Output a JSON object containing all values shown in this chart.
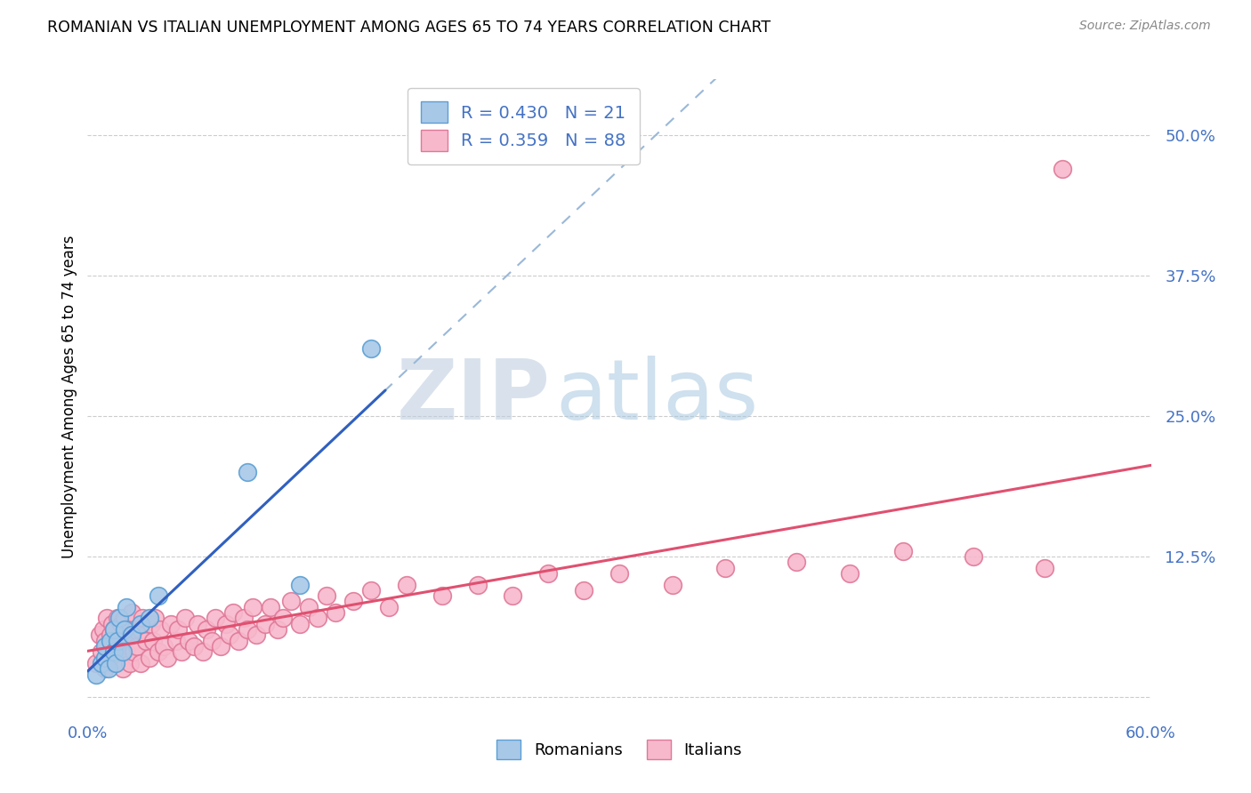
{
  "title": "ROMANIAN VS ITALIAN UNEMPLOYMENT AMONG AGES 65 TO 74 YEARS CORRELATION CHART",
  "source": "Source: ZipAtlas.com",
  "ylabel": "Unemployment Among Ages 65 to 74 years",
  "xlim": [
    0.0,
    0.6
  ],
  "ylim": [
    -0.015,
    0.55
  ],
  "yticks": [
    0.0,
    0.125,
    0.25,
    0.375,
    0.5
  ],
  "ytick_labels": [
    "",
    "12.5%",
    "25.0%",
    "37.5%",
    "50.0%"
  ],
  "xtick_labels": [
    "0.0%",
    "",
    "",
    "",
    "",
    "",
    "60.0%"
  ],
  "watermark_zip": "ZIP",
  "watermark_atlas": "atlas",
  "romanian_color": "#a8c8e8",
  "romanian_edge": "#5a9fd4",
  "italian_color": "#f7b8cc",
  "italian_edge": "#e07898",
  "trend_romanian_color": "#3060c0",
  "trend_italian_color": "#e05070",
  "trend_dashed_color": "#9ab8d8",
  "R_romanian": 0.43,
  "N_romanian": 21,
  "R_italian": 0.359,
  "N_italian": 88,
  "romanian_x": [
    0.005,
    0.008,
    0.01,
    0.01,
    0.012,
    0.013,
    0.015,
    0.015,
    0.016,
    0.017,
    0.018,
    0.02,
    0.021,
    0.022,
    0.025,
    0.03,
    0.035,
    0.04,
    0.09,
    0.12,
    0.16
  ],
  "romanian_y": [
    0.02,
    0.03,
    0.035,
    0.045,
    0.025,
    0.05,
    0.04,
    0.06,
    0.03,
    0.05,
    0.07,
    0.04,
    0.06,
    0.08,
    0.055,
    0.065,
    0.07,
    0.09,
    0.2,
    0.1,
    0.31
  ],
  "italian_x": [
    0.005,
    0.007,
    0.008,
    0.009,
    0.01,
    0.01,
    0.011,
    0.012,
    0.013,
    0.014,
    0.015,
    0.015,
    0.016,
    0.017,
    0.018,
    0.019,
    0.02,
    0.02,
    0.021,
    0.022,
    0.023,
    0.024,
    0.025,
    0.025,
    0.026,
    0.027,
    0.028,
    0.03,
    0.03,
    0.031,
    0.033,
    0.035,
    0.036,
    0.037,
    0.038,
    0.04,
    0.041,
    0.043,
    0.045,
    0.047,
    0.05,
    0.051,
    0.053,
    0.055,
    0.057,
    0.06,
    0.062,
    0.065,
    0.067,
    0.07,
    0.072,
    0.075,
    0.078,
    0.08,
    0.082,
    0.085,
    0.088,
    0.09,
    0.093,
    0.095,
    0.1,
    0.103,
    0.107,
    0.11,
    0.115,
    0.12,
    0.125,
    0.13,
    0.135,
    0.14,
    0.15,
    0.16,
    0.17,
    0.18,
    0.2,
    0.22,
    0.24,
    0.26,
    0.28,
    0.3,
    0.33,
    0.36,
    0.4,
    0.43,
    0.46,
    0.5,
    0.54,
    0.55
  ],
  "italian_y": [
    0.03,
    0.055,
    0.04,
    0.06,
    0.025,
    0.05,
    0.07,
    0.035,
    0.055,
    0.065,
    0.03,
    0.06,
    0.045,
    0.07,
    0.035,
    0.065,
    0.025,
    0.05,
    0.07,
    0.04,
    0.06,
    0.03,
    0.055,
    0.075,
    0.04,
    0.06,
    0.045,
    0.03,
    0.06,
    0.07,
    0.05,
    0.035,
    0.065,
    0.05,
    0.07,
    0.04,
    0.06,
    0.045,
    0.035,
    0.065,
    0.05,
    0.06,
    0.04,
    0.07,
    0.05,
    0.045,
    0.065,
    0.04,
    0.06,
    0.05,
    0.07,
    0.045,
    0.065,
    0.055,
    0.075,
    0.05,
    0.07,
    0.06,
    0.08,
    0.055,
    0.065,
    0.08,
    0.06,
    0.07,
    0.085,
    0.065,
    0.08,
    0.07,
    0.09,
    0.075,
    0.085,
    0.095,
    0.08,
    0.1,
    0.09,
    0.1,
    0.09,
    0.11,
    0.095,
    0.11,
    0.1,
    0.115,
    0.12,
    0.11,
    0.13,
    0.125,
    0.115,
    0.47
  ]
}
